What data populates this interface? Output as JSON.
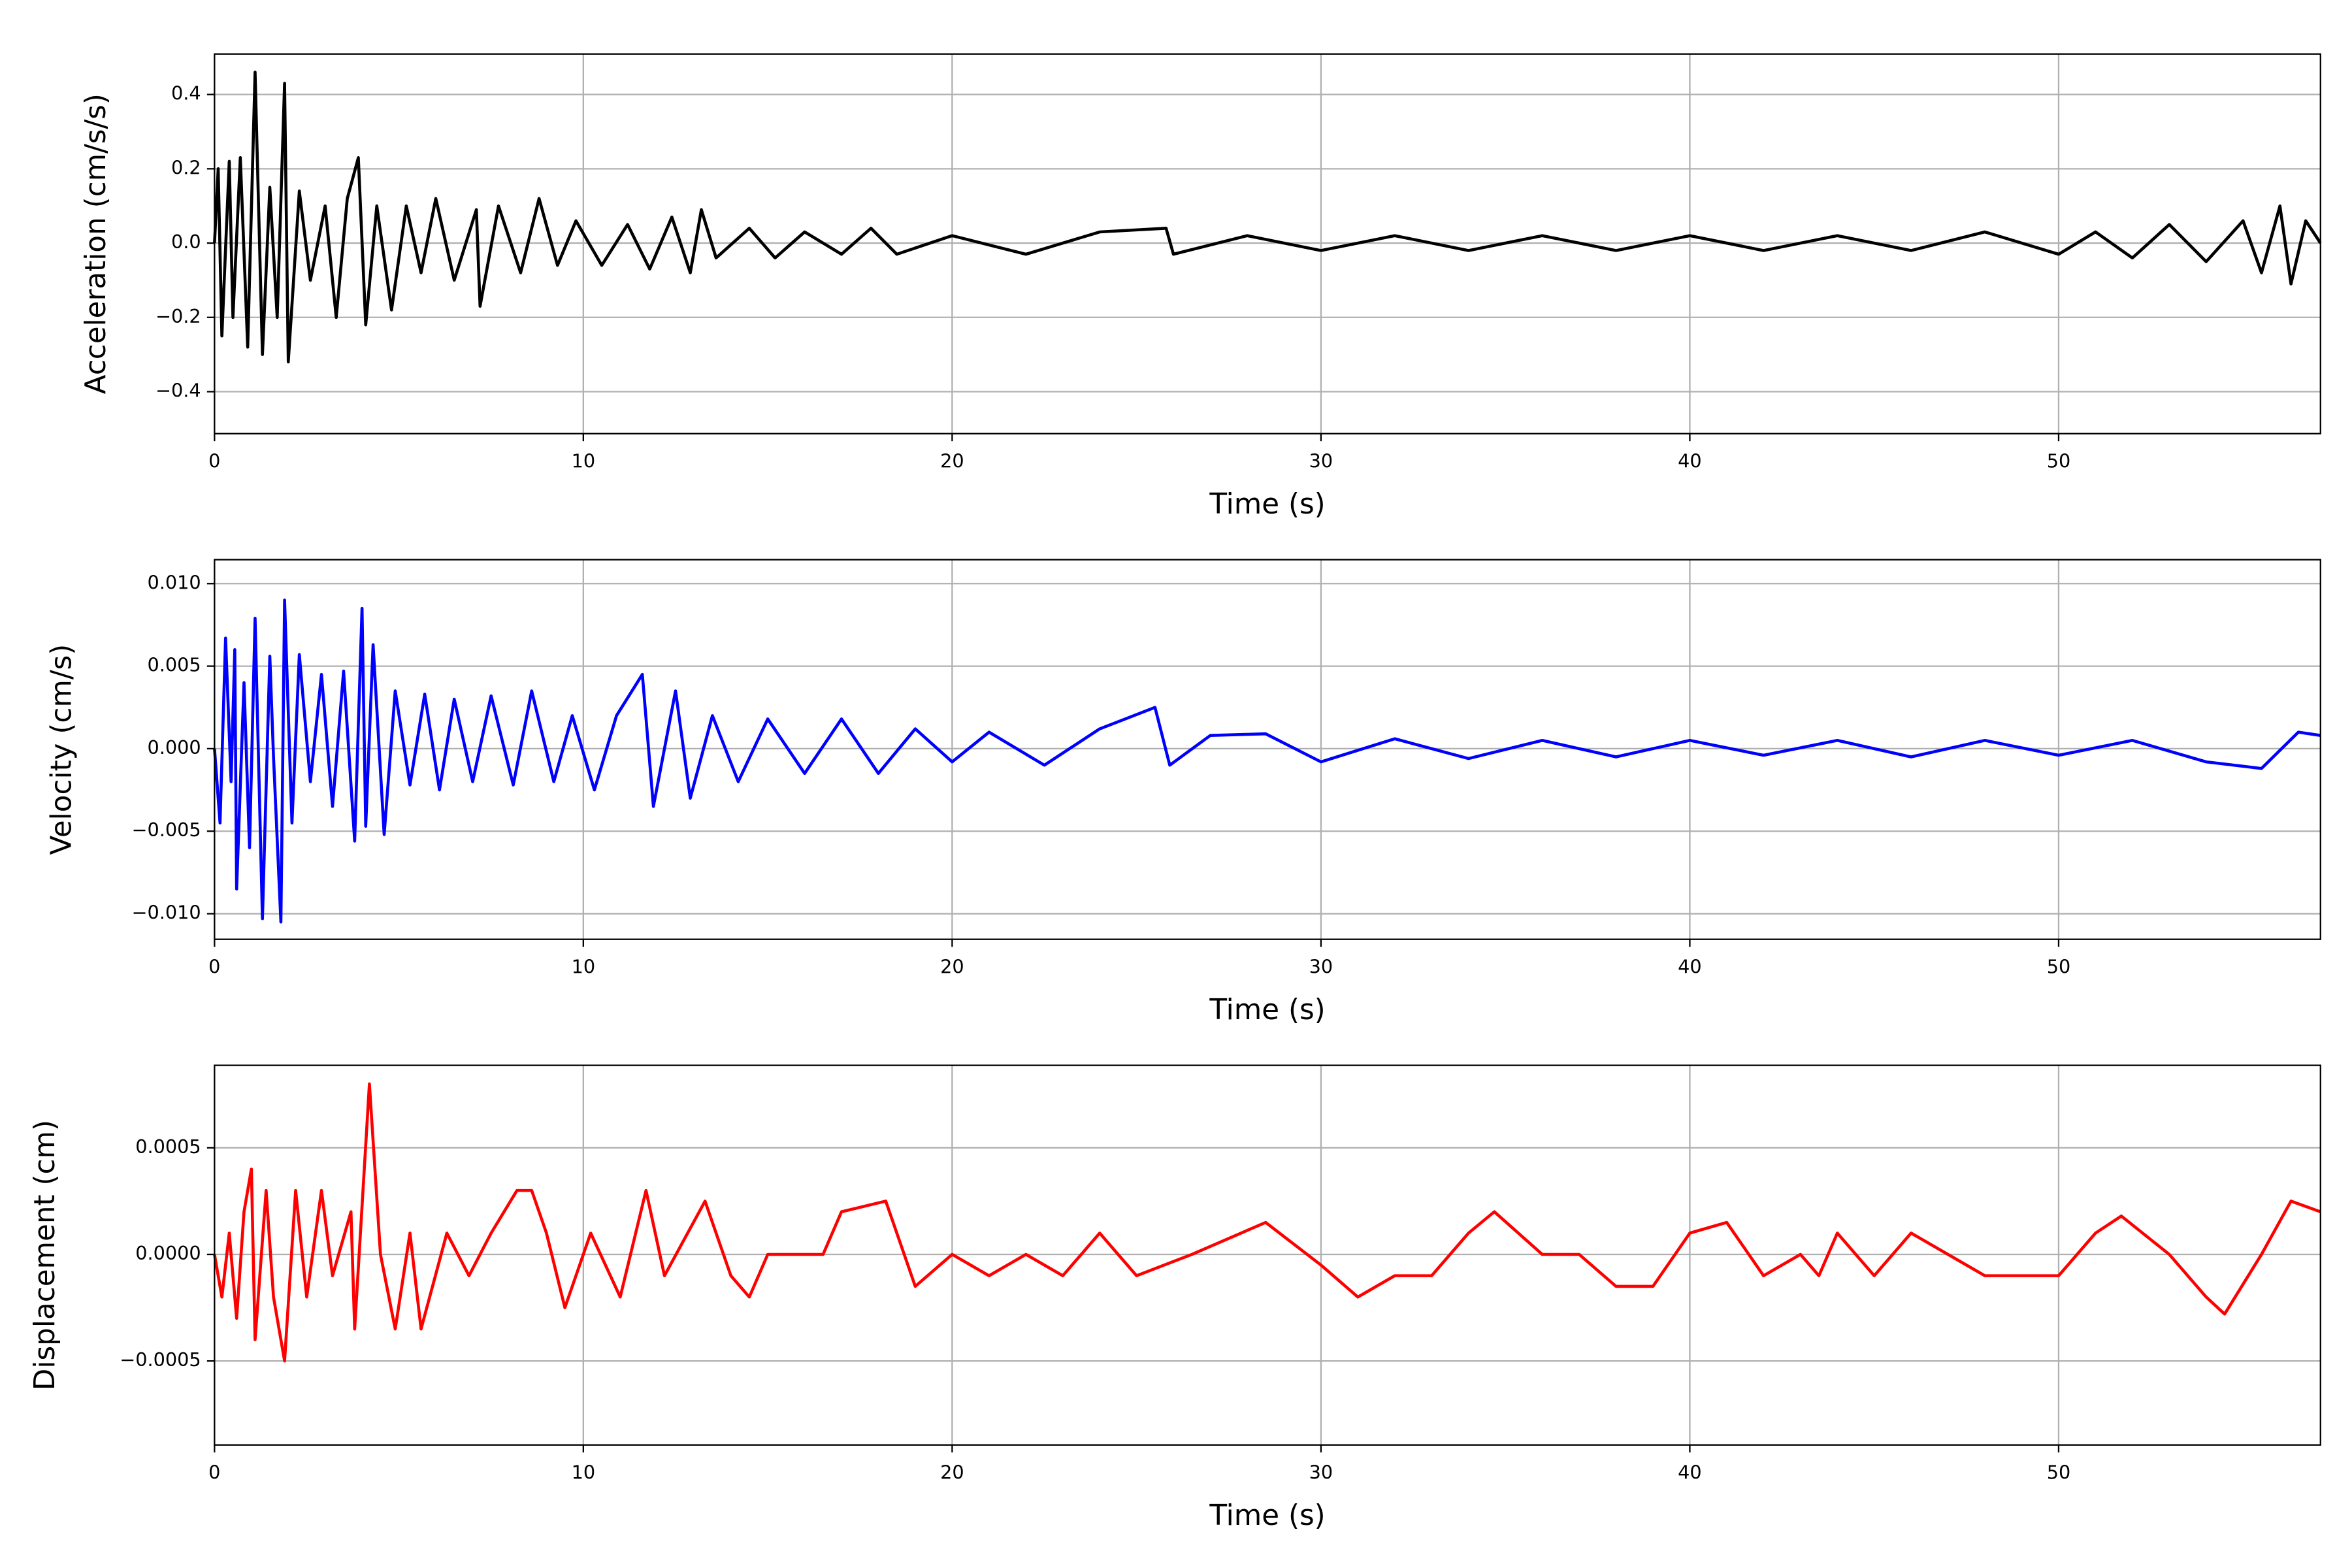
{
  "chart_data": [
    {
      "type": "line",
      "xlabel": "Time (s)",
      "ylabel": "Acceleration (cm/s/s)",
      "color": "#000000",
      "grid": true,
      "xlim": [
        0,
        57.1
      ],
      "xticks": [
        0,
        10,
        20,
        30,
        40,
        50
      ],
      "ylim": [
        -0.513,
        0.509
      ],
      "yticks": [
        {
          "value": -0.4,
          "label": "−0.4"
        },
        {
          "value": -0.2,
          "label": "−0.2"
        },
        {
          "value": 0,
          "label": "0.0"
        },
        0.2,
        0.4
      ],
      "x": [
        0,
        0.1,
        0.2,
        0.4,
        0.5,
        0.7,
        0.9,
        1.1,
        1.3,
        1.5,
        1.7,
        1.9,
        2.0,
        2.3,
        2.6,
        3.0,
        3.3,
        3.6,
        3.9,
        4.1,
        4.4,
        4.8,
        5.2,
        5.6,
        6.0,
        6.5,
        7.1,
        7.2,
        7.7,
        8.3,
        8.8,
        9.3,
        9.8,
        10.5,
        11.2,
        11.8,
        12.4,
        12.9,
        13.2,
        13.6,
        14.5,
        15.2,
        16,
        17,
        17.8,
        18.5,
        20,
        22,
        24,
        25.8,
        26,
        28,
        30,
        32,
        34,
        36,
        38,
        40,
        42,
        44,
        46,
        48,
        50,
        51,
        52,
        53,
        54,
        55,
        55.5,
        56,
        56.3,
        56.7,
        57.1
      ],
      "values": [
        0,
        0.2,
        -0.25,
        0.22,
        -0.2,
        0.23,
        -0.28,
        0.46,
        -0.3,
        0.15,
        -0.2,
        0.43,
        -0.32,
        0.14,
        -0.1,
        0.1,
        -0.2,
        0.12,
        0.23,
        -0.22,
        0.1,
        -0.18,
        0.1,
        -0.08,
        0.12,
        -0.1,
        0.09,
        -0.17,
        0.1,
        -0.08,
        0.12,
        -0.06,
        0.06,
        -0.06,
        0.05,
        -0.07,
        0.07,
        -0.08,
        0.09,
        -0.04,
        0.04,
        -0.04,
        0.03,
        -0.03,
        0.04,
        -0.03,
        0.02,
        -0.03,
        0.03,
        0.04,
        -0.03,
        0.02,
        -0.02,
        0.02,
        -0.02,
        0.02,
        -0.02,
        0.02,
        -0.02,
        0.02,
        -0.02,
        0.03,
        -0.03,
        0.03,
        -0.04,
        0.05,
        -0.05,
        0.06,
        -0.08,
        0.1,
        -0.11,
        0.06,
        0
      ]
    },
    {
      "type": "line",
      "xlabel": "Time (s)",
      "ylabel": "Velocity (cm/s)",
      "color": "#0000ff",
      "grid": true,
      "xlim": [
        0,
        57.1
      ],
      "xticks": [
        0,
        10,
        20,
        30,
        40,
        50
      ],
      "ylim": [
        -0.01155,
        0.01145
      ],
      "yticks": [
        {
          "value": -0.01,
          "label": "−0.010"
        },
        {
          "value": -0.005,
          "label": "−0.005"
        },
        {
          "value": 0,
          "label": "0.000"
        },
        {
          "value": 0.005,
          "label": "0.005"
        },
        {
          "value": 0.01,
          "label": "0.010"
        }
      ],
      "x": [
        0,
        0.15,
        0.3,
        0.45,
        0.55,
        0.6,
        0.8,
        0.95,
        1.1,
        1.3,
        1.5,
        1.6,
        1.8,
        1.9,
        2.1,
        2.3,
        2.6,
        2.9,
        3.2,
        3.5,
        3.8,
        4.0,
        4.1,
        4.3,
        4.6,
        4.9,
        5.3,
        5.7,
        6.1,
        6.5,
        7.0,
        7.5,
        8.1,
        8.6,
        9.2,
        9.7,
        10.3,
        10.9,
        11.6,
        11.9,
        12.5,
        12.9,
        13.5,
        14.2,
        15,
        16,
        17,
        18,
        19,
        20,
        21,
        22.5,
        24,
        25.5,
        25.9,
        27,
        28.5,
        30,
        32,
        34,
        36,
        38,
        40,
        42,
        44,
        46,
        48,
        50,
        52,
        54,
        55.5,
        56.5,
        57.1
      ],
      "values": [
        0,
        -0.0045,
        0.0067,
        -0.002,
        0.006,
        -0.0085,
        0.004,
        -0.006,
        0.0079,
        -0.0103,
        0.0056,
        -0.0005,
        -0.0105,
        0.009,
        -0.0045,
        0.0057,
        -0.002,
        0.0045,
        -0.0035,
        0.0047,
        -0.0056,
        0.0085,
        -0.0047,
        0.0063,
        -0.0052,
        0.0035,
        -0.0022,
        0.0033,
        -0.0025,
        0.003,
        -0.002,
        0.0032,
        -0.0022,
        0.0035,
        -0.002,
        0.002,
        -0.0025,
        0.002,
        0.0045,
        -0.0035,
        0.0035,
        -0.003,
        0.002,
        -0.002,
        0.0018,
        -0.0015,
        0.0018,
        -0.0015,
        0.0012,
        -0.0008,
        0.001,
        -0.001,
        0.0012,
        0.0025,
        -0.001,
        0.0008,
        0.0009,
        -0.0008,
        0.0006,
        -0.0006,
        0.0005,
        -0.0005,
        0.0005,
        -0.0004,
        0.0005,
        -0.0005,
        0.0005,
        -0.0004,
        0.0005,
        -0.0008,
        -0.0012,
        0.001,
        0.0008
      ]
    },
    {
      "type": "line",
      "xlabel": "Time (s)",
      "ylabel": "Displacement (cm)",
      "color": "#ff0000",
      "grid": true,
      "xlim": [
        0,
        57.1
      ],
      "xticks": [
        0,
        10,
        20,
        30,
        40,
        50
      ],
      "ylim": [
        -0.000894,
        0.000887
      ],
      "yticks": [
        {
          "value": -0.0005,
          "label": "−0.0005"
        },
        {
          "value": 0,
          "label": "0.0000"
        },
        {
          "value": 0.0005,
          "label": "0.0005"
        }
      ],
      "x": [
        0,
        0.2,
        0.4,
        0.6,
        0.8,
        1.0,
        1.1,
        1.4,
        1.6,
        1.9,
        2.2,
        2.5,
        2.9,
        3.2,
        3.7,
        3.8,
        4.2,
        4.5,
        4.9,
        5.3,
        5.6,
        6.3,
        6.9,
        7.5,
        8.2,
        8.6,
        9,
        9.5,
        10.2,
        11,
        11.7,
        12.2,
        13.3,
        14,
        14.5,
        15,
        16.5,
        17,
        18.2,
        19,
        20,
        21,
        22,
        23,
        24,
        25,
        26.5,
        28.5,
        30,
        31,
        32,
        33,
        34,
        34.7,
        36,
        37,
        38,
        39,
        40,
        41,
        42,
        43,
        43.5,
        44,
        45,
        46,
        47,
        48,
        50,
        51,
        51.7,
        53,
        54,
        54.5,
        55.5,
        56.3,
        57.1
      ],
      "values": [
        0,
        -0.0002,
        0.0001,
        -0.0003,
        0.0002,
        0.0004,
        -0.0004,
        0.0003,
        -0.0002,
        -0.0005,
        0.0003,
        -0.0002,
        0.0003,
        -0.0001,
        0.0002,
        -0.00035,
        0.0008,
        0,
        -0.00035,
        0.0001,
        -0.00035,
        0.0001,
        -0.0001,
        0.0001,
        0.0003,
        0.0003,
        0.0001,
        -0.00025,
        0.0001,
        -0.0002,
        0.0003,
        -0.0001,
        0.00025,
        -0.0001,
        -0.0002,
        0,
        0,
        0.0002,
        0.00025,
        -0.00015,
        0,
        -0.0001,
        0,
        -0.0001,
        0.0001,
        -0.0001,
        0,
        0.00015,
        -5e-05,
        -0.0002,
        -0.0001,
        -0.0001,
        0.0001,
        0.0002,
        0,
        0,
        -0.00015,
        -0.00015,
        0.0001,
        0.00015,
        -0.0001,
        0,
        -0.0001,
        0.0001,
        -0.0001,
        0.0001,
        0,
        -0.0001,
        -0.0001,
        0.0001,
        0.00018,
        0,
        -0.0002,
        -0.00028,
        0,
        0.00025,
        0.0002
      ]
    }
  ]
}
